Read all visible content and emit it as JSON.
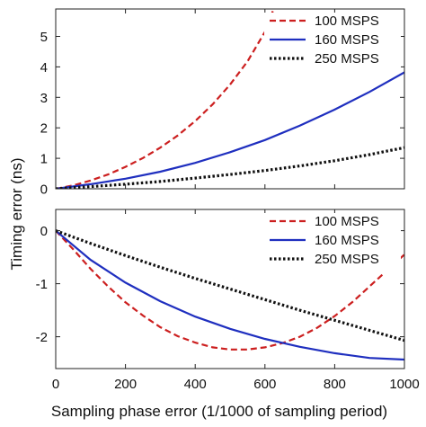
{
  "figure": {
    "ylabel": "Timing  error  (ns)",
    "xlabel": "Sampling phase error (1/1000    of sampling period)"
  },
  "chart_data": [
    {
      "type": "line",
      "title": "",
      "xlabel": "",
      "ylabel": "",
      "xlim": [
        0,
        1000
      ],
      "ylim": [
        0,
        5.9
      ],
      "xticks": [
        0,
        200,
        400,
        600,
        800,
        1000
      ],
      "xticklabels": [
        "",
        "",
        "",
        "",
        "",
        ""
      ],
      "yticks": [
        0,
        1,
        2,
        3,
        4,
        5
      ],
      "yticklabels": [
        "0",
        "1",
        "2",
        "3",
        "4",
        "5"
      ],
      "grid": false,
      "legend_position": "top-right",
      "series": [
        {
          "name": "100 MSPS",
          "color": "#cc1f1f",
          "dash": "dashed",
          "x": [
            0,
            50,
            100,
            150,
            200,
            250,
            300,
            350,
            400,
            450,
            500,
            550,
            600,
            625
          ],
          "y": [
            0,
            0.11,
            0.27,
            0.47,
            0.72,
            1.01,
            1.35,
            1.75,
            2.22,
            2.77,
            3.42,
            4.18,
            5.15,
            5.9
          ]
        },
        {
          "name": "160 MSPS",
          "color": "#1f2fbf",
          "dash": "solid",
          "x": [
            0,
            100,
            200,
            300,
            400,
            500,
            600,
            700,
            800,
            900,
            1000
          ],
          "y": [
            0,
            0.15,
            0.33,
            0.56,
            0.85,
            1.2,
            1.6,
            2.07,
            2.6,
            3.18,
            3.82
          ]
        },
        {
          "name": "250 MSPS",
          "color": "#111111",
          "dash": "dotted",
          "x": [
            0,
            100,
            200,
            300,
            400,
            500,
            600,
            700,
            800,
            900,
            1000
          ],
          "y": [
            0,
            0.07,
            0.15,
            0.24,
            0.35,
            0.47,
            0.6,
            0.75,
            0.92,
            1.12,
            1.35
          ]
        }
      ]
    },
    {
      "type": "line",
      "title": "",
      "xlabel": "",
      "ylabel": "",
      "xlim": [
        0,
        1000
      ],
      "ylim": [
        -2.6,
        0.4
      ],
      "xticks": [
        0,
        200,
        400,
        600,
        800,
        1000
      ],
      "xticklabels": [
        "0",
        "200",
        "400",
        "600",
        "800",
        "1000"
      ],
      "yticks": [
        -2,
        -1,
        0
      ],
      "yticklabels": [
        "-2",
        "-1",
        "0"
      ],
      "grid": false,
      "legend_position": "top-right",
      "series": [
        {
          "name": "100 MSPS",
          "color": "#cc1f1f",
          "dash": "dashed",
          "x": [
            0,
            50,
            100,
            150,
            200,
            250,
            300,
            350,
            400,
            450,
            500,
            550,
            600,
            650,
            700,
            750,
            800,
            850,
            900,
            950,
            1000
          ],
          "y": [
            0,
            -0.35,
            -0.72,
            -1.05,
            -1.35,
            -1.6,
            -1.82,
            -1.99,
            -2.11,
            -2.2,
            -2.24,
            -2.24,
            -2.2,
            -2.12,
            -2.0,
            -1.83,
            -1.61,
            -1.35,
            -1.05,
            -0.75,
            -0.45
          ]
        },
        {
          "name": "160 MSPS",
          "color": "#1f2fbf",
          "dash": "solid",
          "x": [
            0,
            100,
            200,
            300,
            400,
            500,
            600,
            700,
            800,
            900,
            1000
          ],
          "y": [
            0,
            -0.55,
            -0.98,
            -1.33,
            -1.62,
            -1.85,
            -2.04,
            -2.19,
            -2.31,
            -2.4,
            -2.43
          ]
        },
        {
          "name": "250 MSPS",
          "color": "#111111",
          "dash": "dotted",
          "x": [
            0,
            100,
            200,
            300,
            400,
            500,
            600,
            700,
            800,
            900,
            1000
          ],
          "y": [
            0,
            -0.24,
            -0.47,
            -0.69,
            -0.9,
            -1.1,
            -1.3,
            -1.5,
            -1.69,
            -1.88,
            -2.07
          ]
        }
      ]
    }
  ]
}
